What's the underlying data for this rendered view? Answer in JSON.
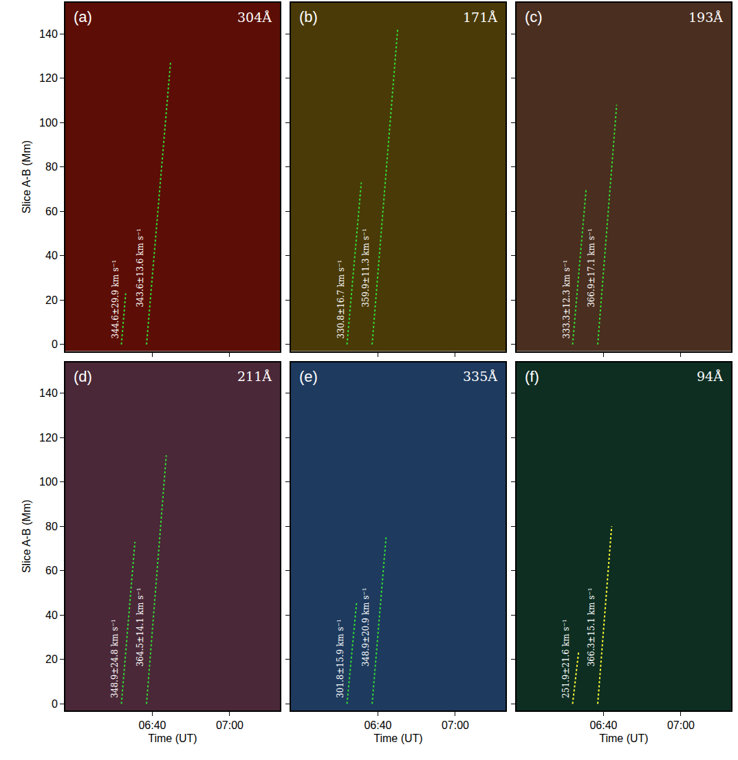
{
  "chart_data": [
    {
      "type": "line",
      "panel": "(a)",
      "title": "304Å",
      "color": "#5c0e06",
      "ylabel": "Slice A-B (Mm)",
      "tick_labels": "y",
      "xlim": [
        377.5,
        433
      ],
      "xticks": [
        {
          "value": 400,
          "label": "06:40"
        },
        {
          "value": 420,
          "label": "07:00"
        }
      ],
      "ylim": [
        -3,
        154
      ],
      "yticks": [
        0,
        20,
        40,
        60,
        80,
        100,
        120,
        140
      ],
      "series": [
        {
          "x": [
            392,
            393.1
          ],
          "y": [
            0,
            23
          ],
          "color": "#33dd33",
          "line_style": "dotted",
          "label": "344.6±29.9 km s⁻¹"
        },
        {
          "x": [
            398.5,
            404.7
          ],
          "y": [
            0,
            127
          ],
          "color": "#33dd33",
          "line_style": "dotted",
          "label": "343.6±13.6 km s⁻¹"
        }
      ]
    },
    {
      "type": "line",
      "panel": "(b)",
      "title": "171Å",
      "color": "#4a3a08",
      "tick_labels": false,
      "xlim": [
        377.5,
        433
      ],
      "xticks": [
        {
          "value": 400,
          "label": "06:40"
        },
        {
          "value": 420,
          "label": "07:00"
        }
      ],
      "ylim": [
        -3,
        154
      ],
      "yticks": [
        0,
        20,
        40,
        60,
        80,
        100,
        120,
        140
      ],
      "series": [
        {
          "x": [
            392,
            395.7
          ],
          "y": [
            0,
            73
          ],
          "color": "#33dd33",
          "line_style": "dotted",
          "label": "330.8±16.7 km s⁻¹"
        },
        {
          "x": [
            398.5,
            405.1
          ],
          "y": [
            0,
            142
          ],
          "color": "#33dd33",
          "line_style": "dotted",
          "label": "359.9±11.3 km s⁻¹"
        }
      ]
    },
    {
      "type": "line",
      "panel": "(c)",
      "title": "193Å",
      "color": "#4a2e1f",
      "tick_labels": false,
      "xlim": [
        377.5,
        433
      ],
      "xticks": [
        {
          "value": 400,
          "label": "06:40"
        },
        {
          "value": 420,
          "label": "07:00"
        }
      ],
      "ylim": [
        -3,
        154
      ],
      "yticks": [
        0,
        20,
        40,
        60,
        80,
        100,
        120,
        140
      ],
      "series": [
        {
          "x": [
            392,
            395.5
          ],
          "y": [
            0,
            70
          ],
          "color": "#33dd33",
          "line_style": "dotted",
          "label": "333.3±12.3 km s⁻¹"
        },
        {
          "x": [
            398.5,
            403.4
          ],
          "y": [
            0,
            108
          ],
          "color": "#33dd33",
          "line_style": "dotted",
          "label": "366.9±17.1 km s⁻¹"
        }
      ]
    },
    {
      "type": "line",
      "panel": "(d)",
      "title": "211Å",
      "color": "#4a2838",
      "ylabel": "Slice A-B (Mm)",
      "xlabel": "Time (UT)",
      "tick_labels": true,
      "xlim": [
        377.5,
        433
      ],
      "xticks": [
        {
          "value": 400,
          "label": "06:40"
        },
        {
          "value": 420,
          "label": "07:00"
        }
      ],
      "ylim": [
        -3,
        154
      ],
      "yticks": [
        0,
        20,
        40,
        60,
        80,
        100,
        120,
        140
      ],
      "series": [
        {
          "x": [
            392,
            395.5
          ],
          "y": [
            0,
            73
          ],
          "color": "#33dd33",
          "line_style": "dotted",
          "label": "348.9±24.8 km s⁻¹"
        },
        {
          "x": [
            398.5,
            403.6
          ],
          "y": [
            0,
            112
          ],
          "color": "#33dd33",
          "line_style": "dotted",
          "label": "364.5±14.1 km s⁻¹"
        }
      ]
    },
    {
      "type": "line",
      "panel": "(e)",
      "title": "335Å",
      "color": "#1e3a5e",
      "xlabel": "Time (UT)",
      "tick_labels": "x",
      "xlim": [
        377.5,
        433
      ],
      "xticks": [
        {
          "value": 400,
          "label": "06:40"
        },
        {
          "value": 420,
          "label": "07:00"
        }
      ],
      "ylim": [
        -3,
        154
      ],
      "yticks": [
        0,
        20,
        40,
        60,
        80,
        100,
        120,
        140
      ],
      "series": [
        {
          "x": [
            392,
            394.5
          ],
          "y": [
            0,
            46
          ],
          "color": "#33dd33",
          "line_style": "dotted",
          "label": "301.8±15.9 km s⁻¹"
        },
        {
          "x": [
            398.5,
            402.1
          ],
          "y": [
            0,
            75
          ],
          "color": "#33dd33",
          "line_style": "dotted",
          "label": "348.9±20.9 km s⁻¹"
        }
      ]
    },
    {
      "type": "line",
      "panel": "(f)",
      "title": "94Å",
      "color": "#0e2e22",
      "xlabel": "Time (UT)",
      "tick_labels": "x",
      "xlim": [
        377.5,
        433
      ],
      "xticks": [
        {
          "value": 400,
          "label": "06:40"
        },
        {
          "value": 420,
          "label": "07:00"
        }
      ],
      "ylim": [
        -3,
        154
      ],
      "yticks": [
        0,
        20,
        40,
        60,
        80,
        100,
        120,
        140
      ],
      "series": [
        {
          "x": [
            392,
            393.6
          ],
          "y": [
            0,
            24
          ],
          "color": "#ffff33",
          "line_style": "dotted",
          "label": "251.9±21.6 km s⁻¹"
        },
        {
          "x": [
            398.5,
            402.1
          ],
          "y": [
            0,
            80
          ],
          "color": "#ffff33",
          "line_style": "dotted",
          "label": "366.3±15.1 km s⁻¹"
        }
      ]
    }
  ]
}
